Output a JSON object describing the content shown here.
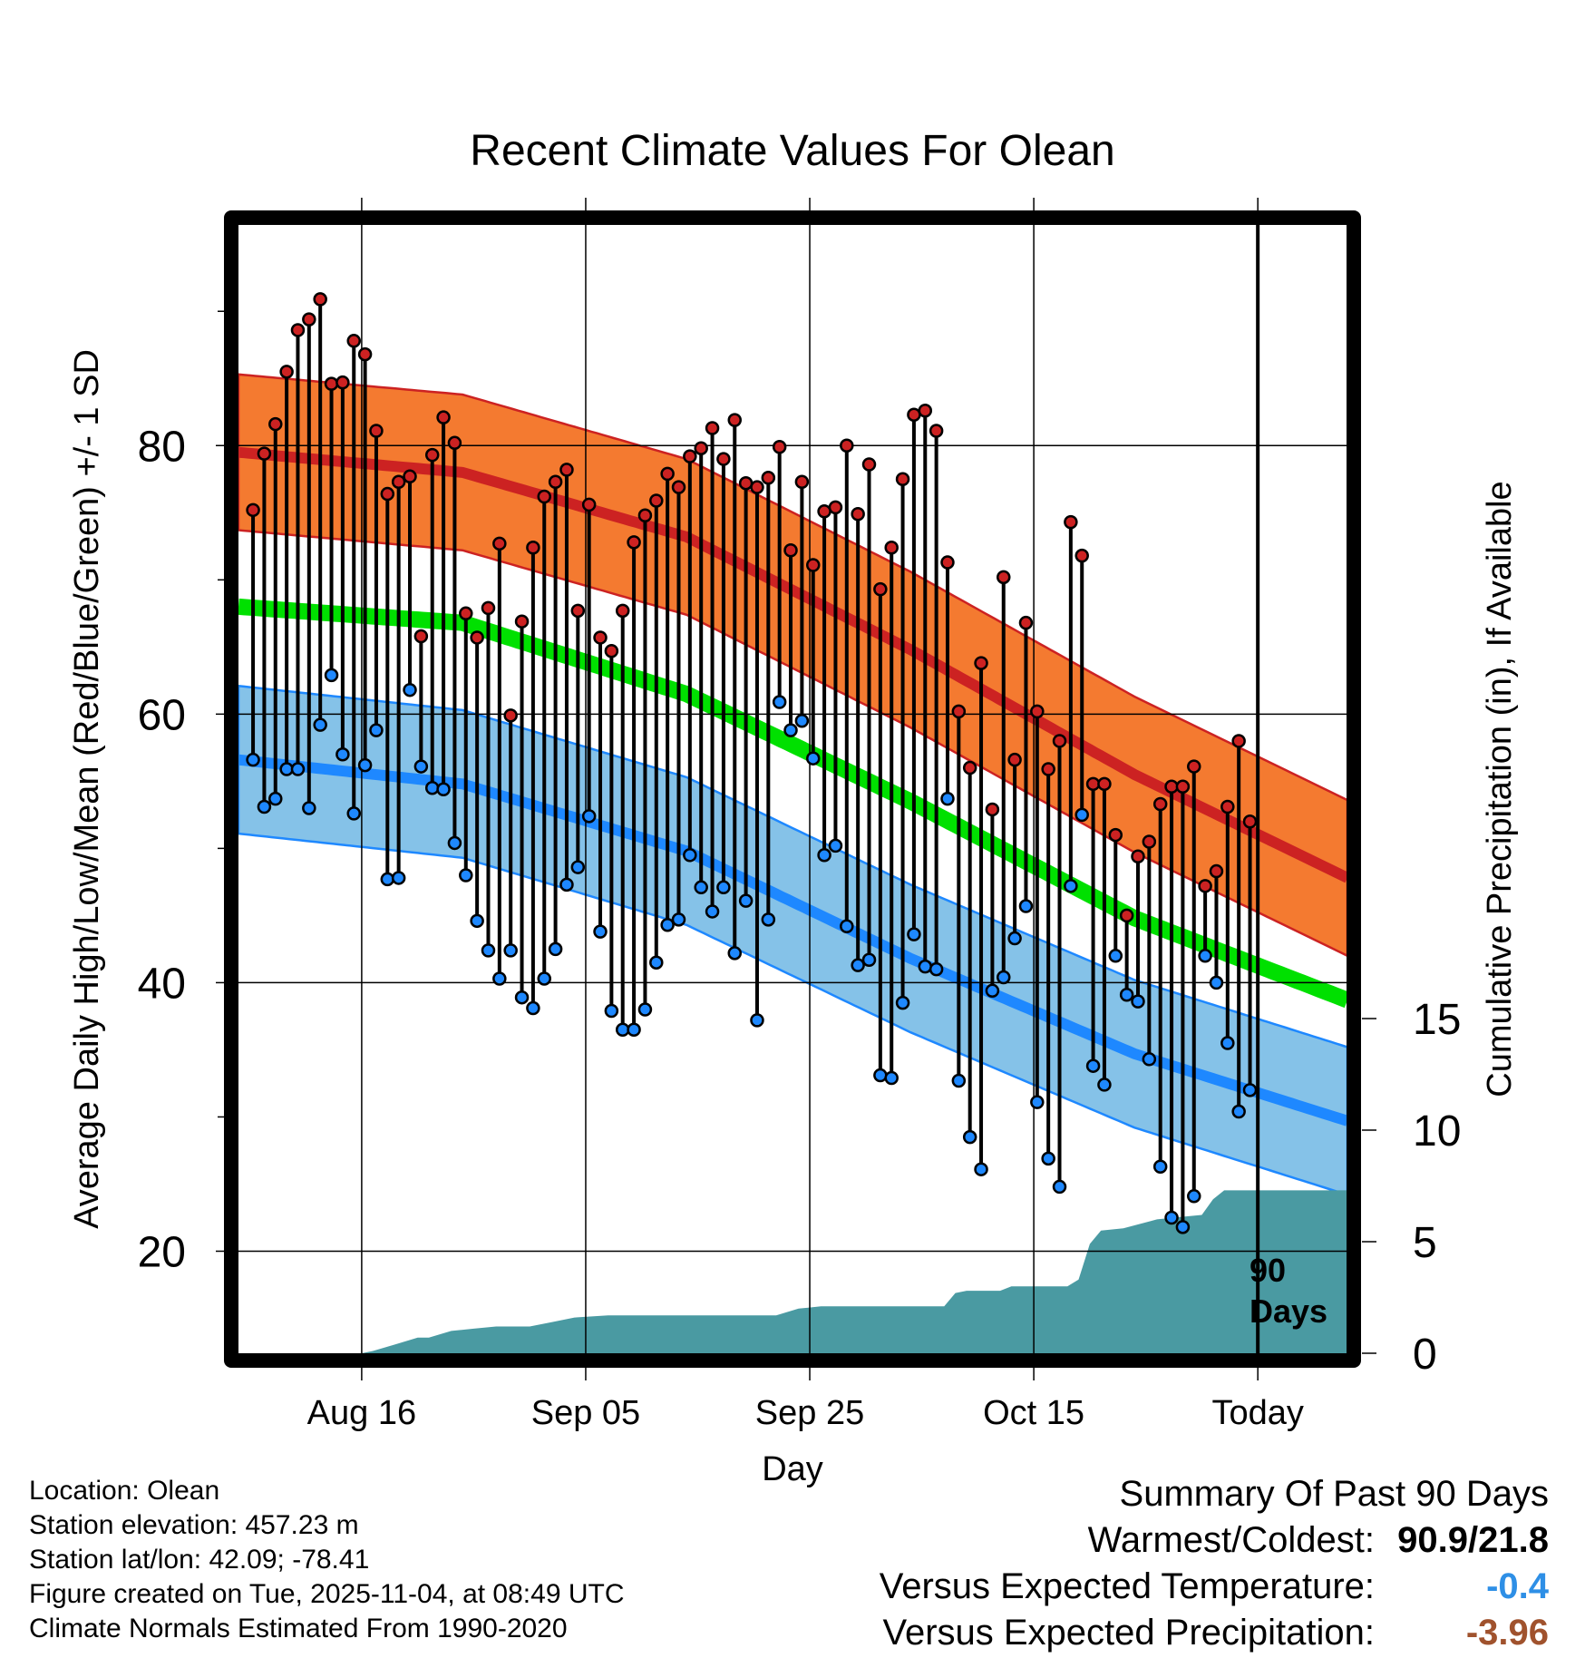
{
  "chart_data": {
    "type": "line",
    "title": "Recent Climate Values For Olean",
    "xlabel": "Day",
    "ylabel": "Average Daily High/Low/Mean (Red/Blue/Green) +/- 1 SD",
    "y2label": "Cumulative Precipitation (in), If Available",
    "x_range_days": [
      -91,
      8
    ],
    "ylim": [
      12.4,
      96.5
    ],
    "y_ticks": [
      20,
      40,
      60,
      80
    ],
    "y2_ticks": [
      0,
      5,
      10,
      15
    ],
    "x_ticks": [
      {
        "label": "Aug 16",
        "day": -80
      },
      {
        "label": "Sep 05",
        "day": -60
      },
      {
        "label": "Sep 25",
        "day": -40
      },
      {
        "label": "Oct 15",
        "day": -20
      },
      {
        "label": "Today",
        "day": 0
      }
    ],
    "today_marker_label_line1": "90",
    "today_marker_label_line2": "Days",
    "normal_high_anchors": [
      [
        -91,
        79.5
      ],
      [
        -71,
        78.0
      ],
      [
        -51,
        73.2
      ],
      [
        -31,
        64.8
      ],
      [
        -11,
        55.5
      ],
      [
        8,
        47.8
      ]
    ],
    "normal_low_anchors": [
      [
        -91,
        56.6
      ],
      [
        -71,
        54.8
      ],
      [
        -51,
        49.8
      ],
      [
        -31,
        41.8
      ],
      [
        -11,
        34.7
      ],
      [
        8,
        29.7
      ]
    ],
    "normal_mean_anchors": [
      [
        -91,
        68.0
      ],
      [
        -71,
        66.8
      ],
      [
        -51,
        61.5
      ],
      [
        -31,
        53.5
      ],
      [
        -11,
        44.8
      ],
      [
        8,
        38.7
      ]
    ],
    "high_sd": 5.8,
    "low_sd": 5.5,
    "daily_highs": [
      75.2,
      79.4,
      81.6,
      85.5,
      88.6,
      89.4,
      90.9,
      84.6,
      84.7,
      87.8,
      86.8,
      81.1,
      76.4,
      77.3,
      77.7,
      65.8,
      79.3,
      82.1,
      80.2,
      67.5,
      65.7,
      67.9,
      72.7,
      59.9,
      66.9,
      72.4,
      76.2,
      77.3,
      78.2,
      67.7,
      75.6,
      65.7,
      64.7,
      67.7,
      72.8,
      74.8,
      75.9,
      77.9,
      76.9,
      79.2,
      79.8,
      81.3,
      79.0,
      81.9,
      77.2,
      76.9,
      77.6,
      79.9,
      72.2,
      77.3,
      71.1,
      75.1,
      75.4,
      80.0,
      74.9,
      78.6,
      69.3,
      72.4,
      77.5,
      82.3,
      82.6,
      81.1,
      71.3,
      60.2,
      56.0,
      63.8,
      52.9,
      70.2,
      56.6,
      66.8,
      60.2,
      55.9,
      58.0,
      74.3,
      71.8,
      54.8,
      54.8,
      51.0,
      45.0,
      49.4,
      50.5,
      53.3,
      54.6,
      54.6,
      56.1,
      47.2,
      48.3,
      53.1,
      58.0,
      52.0
    ],
    "daily_lows": [
      56.6,
      53.1,
      53.7,
      55.9,
      55.9,
      53.0,
      59.2,
      62.9,
      57.0,
      52.6,
      56.2,
      58.8,
      47.7,
      47.8,
      61.8,
      56.1,
      54.5,
      54.4,
      50.4,
      48.0,
      44.6,
      42.4,
      40.3,
      42.4,
      38.9,
      38.1,
      40.3,
      42.5,
      47.3,
      48.6,
      52.4,
      43.8,
      37.9,
      36.5,
      36.5,
      38.0,
      41.5,
      44.3,
      44.7,
      49.5,
      47.1,
      45.3,
      47.1,
      42.2,
      46.1,
      37.2,
      44.7,
      60.9,
      58.8,
      59.5,
      56.7,
      49.5,
      50.2,
      44.2,
      41.3,
      41.7,
      33.1,
      32.9,
      38.5,
      43.6,
      41.2,
      41.0,
      53.7,
      32.7,
      28.5,
      26.1,
      39.4,
      40.4,
      43.3,
      45.7,
      31.1,
      26.9,
      24.8,
      47.2,
      52.5,
      33.8,
      32.4,
      42.0,
      39.1,
      38.6,
      34.3,
      26.3,
      22.5,
      21.8,
      24.1,
      42.0,
      40.0,
      35.5,
      30.4,
      32.0
    ],
    "cumulative_precip_anchors": [
      [
        -90,
        0.0
      ],
      [
        -80,
        0.0
      ],
      [
        -79,
        0.1
      ],
      [
        -77,
        0.4
      ],
      [
        -75,
        0.7
      ],
      [
        -74,
        0.7
      ],
      [
        -72,
        1.0
      ],
      [
        -70,
        1.1
      ],
      [
        -68,
        1.2
      ],
      [
        -65,
        1.2
      ],
      [
        -63,
        1.4
      ],
      [
        -61,
        1.6
      ],
      [
        -58,
        1.7
      ],
      [
        -43,
        1.7
      ],
      [
        -41,
        2.0
      ],
      [
        -39,
        2.1
      ],
      [
        -28,
        2.1
      ],
      [
        -27,
        2.7
      ],
      [
        -26,
        2.8
      ],
      [
        -23,
        2.8
      ],
      [
        -22,
        3.0
      ],
      [
        -17,
        3.0
      ],
      [
        -16,
        3.3
      ],
      [
        -15,
        4.9
      ],
      [
        -14,
        5.5
      ],
      [
        -12,
        5.6
      ],
      [
        -9,
        6.0
      ],
      [
        -7,
        6.1
      ],
      [
        -5,
        6.2
      ],
      [
        -4,
        6.9
      ],
      [
        -3,
        7.3
      ],
      [
        0,
        7.3
      ],
      [
        9,
        7.3
      ]
    ],
    "series_colors": {
      "high": "#cc2222",
      "low": "#1e88ff",
      "mean": "#00e000",
      "high_band": "#f47a30",
      "low_band": "#85c2e8",
      "precip": "#4a9aa2"
    }
  },
  "footer": {
    "location": "Location: Olean",
    "elevation": "Station elevation: 457.23 m",
    "latlon": "Station lat/lon: 42.09; -78.41",
    "created": "Figure created on Tue, 2025-11-04, at 08:49 UTC",
    "normals": "Climate Normals Estimated From 1990-2020"
  },
  "summary": {
    "heading": "Summary Of Past 90 Days",
    "warmest_label": "Warmest/Coldest:",
    "warmest_value": "90.9/21.8",
    "temp_label": "Versus Expected Temperature:",
    "temp_value": "-0.4",
    "temp_color": "#2e8fe6",
    "precip_label": "Versus Expected Precipitation:",
    "precip_value": "-3.96",
    "precip_color": "#a0522d"
  }
}
